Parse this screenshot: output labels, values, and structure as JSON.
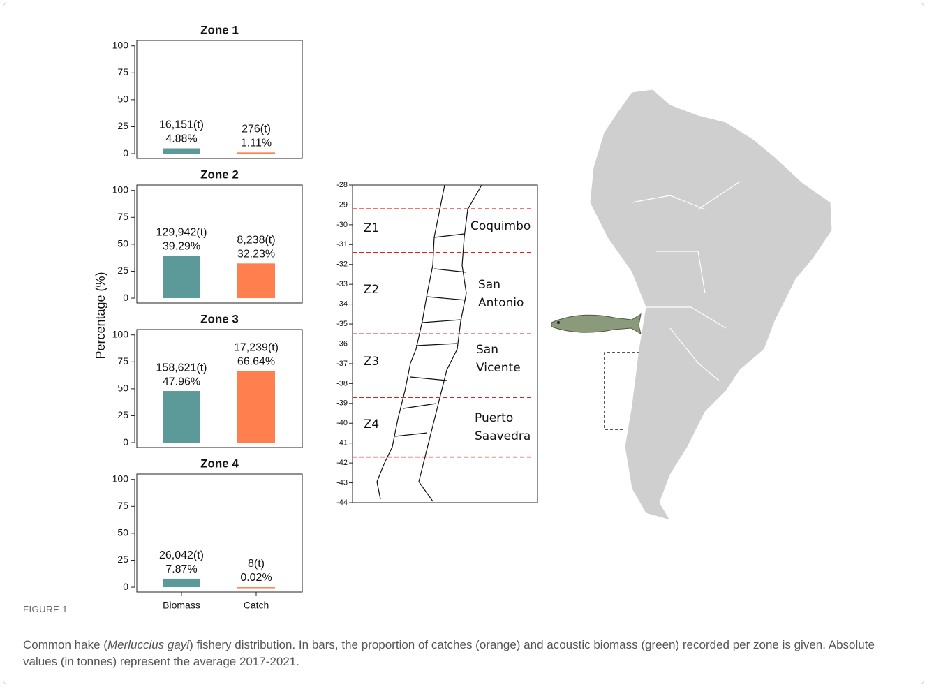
{
  "y_axis_label": "Percentage (%)",
  "chart_data": [
    {
      "type": "bar",
      "title": "Zone 1",
      "categories": [
        null,
        null
      ],
      "values": [
        4.88,
        1.11
      ],
      "value_labels": [
        "4.88%",
        "1.11%"
      ],
      "tonnes_labels": [
        "16,151(t)",
        "276(t)"
      ],
      "colors": [
        "#5b9a99",
        "#ff7f4f"
      ],
      "ylim": [
        -4.5,
        105
      ],
      "yticks": [
        0,
        25,
        50,
        75,
        100
      ]
    },
    {
      "type": "bar",
      "title": "Zone 2",
      "categories": [
        null,
        null
      ],
      "values": [
        39.29,
        32.23
      ],
      "value_labels": [
        "39.29%",
        "32.23%"
      ],
      "tonnes_labels": [
        "129,942(t)",
        "8,238(t)"
      ],
      "colors": [
        "#5b9a99",
        "#ff7f4f"
      ],
      "ylim": [
        -4.5,
        105
      ],
      "yticks": [
        0,
        25,
        50,
        75,
        100
      ]
    },
    {
      "type": "bar",
      "title": "Zone 3",
      "categories": [
        null,
        null
      ],
      "values": [
        47.96,
        66.64
      ],
      "value_labels": [
        "47.96%",
        "66.64%"
      ],
      "tonnes_labels": [
        "158,621(t)",
        "17,239(t)"
      ],
      "colors": [
        "#5b9a99",
        "#ff7f4f"
      ],
      "ylim": [
        -4.5,
        105
      ],
      "yticks": [
        0,
        25,
        50,
        75,
        100
      ]
    },
    {
      "type": "bar",
      "title": "Zone 4",
      "categories": [
        "Biomass",
        "Catch"
      ],
      "values": [
        7.87,
        0.02
      ],
      "value_labels": [
        "7.87%",
        "0.02%"
      ],
      "tonnes_labels": [
        "26,042(t)",
        "8(t)"
      ],
      "colors": [
        "#5b9a99",
        "#ff7f4f"
      ],
      "ylim": [
        -4.5,
        105
      ],
      "yticks": [
        0,
        25,
        50,
        75,
        100
      ]
    },
    {
      "type": "map",
      "ylim": [
        -44,
        -28
      ],
      "yticks": [
        -28,
        -29,
        -30,
        -31,
        -32,
        -33,
        -34,
        -35,
        -36,
        -37,
        -38,
        -39,
        -40,
        -41,
        -42,
        -43,
        -44
      ],
      "boundaries": [
        -29.2,
        -31.4,
        -35.5,
        -38.7,
        -41.7
      ],
      "boundary_color": "#e02020",
      "zones": [
        {
          "label": "Z1",
          "place": [
            "Coquimbo"
          ]
        },
        {
          "label": "Z2",
          "place": [
            "San",
            "Antonio"
          ]
        },
        {
          "label": "Z3",
          "place": [
            "San",
            "Vicente"
          ]
        },
        {
          "label": "Z4",
          "place": [
            "Puerto",
            "Saavedra"
          ]
        }
      ]
    }
  ],
  "caption": {
    "label": "FIGURE 1",
    "parts": [
      "Common hake (",
      "Merluccius gayi",
      ") fishery distribution. In bars, the proportion of catches (orange) and acoustic biomass (green) recorded per zone is given. Absolute values (in tonnes) represent the average 2017-2021."
    ]
  }
}
